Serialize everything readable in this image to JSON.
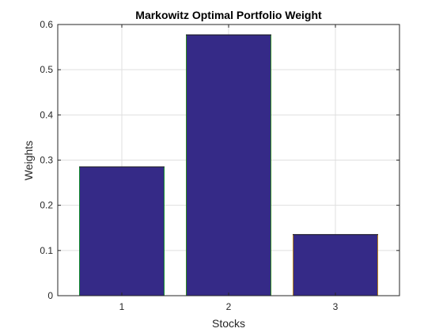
{
  "chart_data": {
    "type": "bar",
    "title": "Markowitz Optimal Portfolio Weight",
    "xlabel": "Stocks",
    "ylabel": "Weights",
    "categories": [
      "1",
      "2",
      "3"
    ],
    "values": [
      0.286,
      0.578,
      0.136
    ],
    "ylim": [
      0,
      0.6
    ],
    "yticks": [
      "0",
      "0.1",
      "0.2",
      "0.3",
      "0.4",
      "0.5",
      "0.6"
    ],
    "grid": true,
    "legend": "none",
    "bar_color": "#352a87",
    "bar_edge_colors": [
      "#118a2e",
      "#2f8a1e",
      "#b8841c"
    ]
  }
}
